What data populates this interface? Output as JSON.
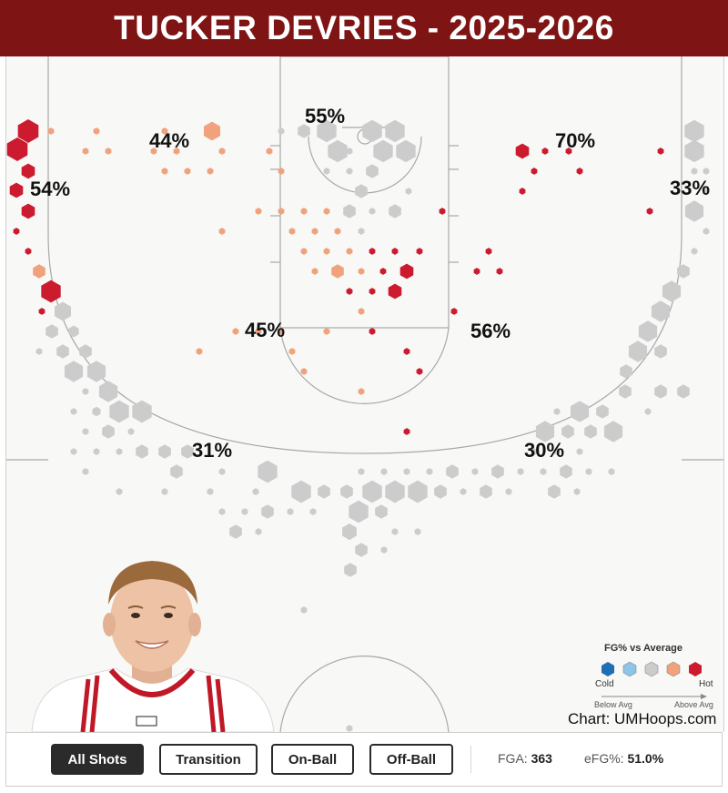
{
  "title": "TUCKER DEVRIES - 2025-2026",
  "colors": {
    "title_bg": "#7f1414",
    "cold": "#1f6fb2",
    "below_avg": "#8ec4e6",
    "average": "#cccccc",
    "above_avg": "#f0a27c",
    "hot": "#cc1a2e"
  },
  "legend": {
    "title": "FG% vs Average",
    "cold_label": "Cold",
    "hot_label": "Hot",
    "below_label": "Below Avg",
    "above_label": "Above Avg"
  },
  "credit": "Chart: UMHoops.com",
  "buttons": [
    "All Shots",
    "Transition",
    "On-Ball",
    "Off-Ball"
  ],
  "active_button": "All Shots",
  "stats": {
    "fga_label": "FGA:",
    "fga_value": "363",
    "efg_label": "eFG%:",
    "efg_value": "51.0%"
  },
  "chart_data": {
    "type": "hexbin shot chart",
    "zones": [
      {
        "zone": "restricted area",
        "fg_pct": "55%"
      },
      {
        "zone": "left baseline paint",
        "fg_pct": "44%"
      },
      {
        "zone": "right baseline",
        "fg_pct": "70%"
      },
      {
        "zone": "left corner three",
        "fg_pct": "54%"
      },
      {
        "zone": "right corner three",
        "fg_pct": "33%"
      },
      {
        "zone": "left mid-range",
        "fg_pct": "45%"
      },
      {
        "zone": "right mid-range",
        "fg_pct": "56%"
      },
      {
        "zone": "left wing three",
        "fg_pct": "31%"
      },
      {
        "zone": "right wing three",
        "fg_pct": "30%"
      }
    ],
    "color_scale": [
      "cold",
      "below_avg",
      "average",
      "above_avg",
      "hot"
    ],
    "shots": [
      [
        "h",
        30,
        144,
        1.0
      ],
      [
        "h",
        18,
        164,
        1.0
      ],
      [
        "h",
        30,
        188,
        0.65
      ],
      [
        "h",
        17,
        209,
        0.65
      ],
      [
        "h",
        30,
        232,
        0.65
      ],
      [
        "h",
        17,
        254,
        0.3
      ],
      [
        "h",
        30,
        276,
        0.3
      ],
      [
        "o",
        42,
        298,
        0.6
      ],
      [
        "h",
        55,
        320,
        0.95
      ],
      [
        "h",
        45,
        342,
        0.3
      ],
      [
        "g",
        68,
        342,
        0.8
      ],
      [
        "g",
        56,
        364,
        0.6
      ],
      [
        "g",
        42,
        386,
        0.3
      ],
      [
        "g",
        80,
        364,
        0.5
      ],
      [
        "g",
        68,
        386,
        0.6
      ],
      [
        "g",
        93,
        386,
        0.6
      ],
      [
        "g",
        80,
        408,
        0.9
      ],
      [
        "g",
        105,
        408,
        0.9
      ],
      [
        "g",
        93,
        430,
        0.3
      ],
      [
        "g",
        118,
        430,
        0.9
      ],
      [
        "g",
        105,
        452,
        0.4
      ],
      [
        "g",
        130,
        452,
        0.95
      ],
      [
        "g",
        155,
        452,
        0.95
      ],
      [
        "g",
        80,
        452,
        0.3
      ],
      [
        "g",
        93,
        474,
        0.3
      ],
      [
        "g",
        118,
        474,
        0.6
      ],
      [
        "g",
        143,
        474,
        0.3
      ],
      [
        "g",
        80,
        496,
        0.3
      ],
      [
        "g",
        105,
        496,
        0.3
      ],
      [
        "g",
        130,
        496,
        0.3
      ],
      [
        "g",
        155,
        496,
        0.6
      ],
      [
        "g",
        180,
        496,
        0.6
      ],
      [
        "g",
        205,
        496,
        0.6
      ],
      [
        "g",
        93,
        518,
        0.3
      ],
      [
        "g",
        193,
        518,
        0.6
      ],
      [
        "g",
        243,
        518,
        0.3
      ],
      [
        "g",
        293,
        518,
        0.95
      ],
      [
        "g",
        130,
        540,
        0.3
      ],
      [
        "g",
        180,
        540,
        0.3
      ],
      [
        "g",
        230,
        540,
        0.3
      ],
      [
        "g",
        280,
        540,
        0.3
      ],
      [
        "g",
        330,
        540,
        0.95
      ],
      [
        "g",
        355,
        540,
        0.6
      ],
      [
        "g",
        380,
        540,
        0.6
      ],
      [
        "g",
        243,
        562,
        0.3
      ],
      [
        "g",
        268,
        562,
        0.3
      ],
      [
        "g",
        293,
        562,
        0.6
      ],
      [
        "g",
        318,
        562,
        0.3
      ],
      [
        "g",
        343,
        562,
        0.3
      ],
      [
        "g",
        393,
        562,
        0.95
      ],
      [
        "g",
        418,
        562,
        0.6
      ],
      [
        "g",
        258,
        584,
        0.6
      ],
      [
        "g",
        283,
        584,
        0.3
      ],
      [
        "g",
        383,
        584,
        0.7
      ],
      [
        "g",
        433,
        584,
        0.3
      ],
      [
        "g",
        458,
        584,
        0.3
      ],
      [
        "g",
        396,
        518,
        0.3
      ],
      [
        "g",
        421,
        518,
        0.3
      ],
      [
        "g",
        446,
        518,
        0.3
      ],
      [
        "g",
        471,
        518,
        0.3
      ],
      [
        "g",
        496,
        518,
        0.6
      ],
      [
        "g",
        521,
        518,
        0.3
      ],
      [
        "g",
        546,
        518,
        0.6
      ],
      [
        "g",
        571,
        518,
        0.3
      ],
      [
        "g",
        596,
        518,
        0.3
      ],
      [
        "g",
        621,
        518,
        0.6
      ],
      [
        "g",
        646,
        518,
        0.3
      ],
      [
        "g",
        671,
        518,
        0.3
      ],
      [
        "g",
        408,
        540,
        0.95
      ],
      [
        "g",
        433,
        540,
        0.95
      ],
      [
        "g",
        458,
        540,
        0.95
      ],
      [
        "g",
        483,
        540,
        0.6
      ],
      [
        "g",
        508,
        540,
        0.3
      ],
      [
        "g",
        533,
        540,
        0.6
      ],
      [
        "g",
        558,
        540,
        0.3
      ],
      [
        "g",
        608,
        540,
        0.6
      ],
      [
        "g",
        633,
        540,
        0.3
      ],
      [
        "g",
        396,
        604,
        0.6
      ],
      [
        "g",
        421,
        604,
        0.3
      ],
      [
        "g",
        384,
        626,
        0.6
      ],
      [
        "g",
        333,
        670,
        0.3
      ],
      [
        "g",
        383,
        800,
        0.3
      ],
      [
        "g",
        598,
        474,
        0.9
      ],
      [
        "g",
        623,
        474,
        0.6
      ],
      [
        "g",
        648,
        474,
        0.6
      ],
      [
        "g",
        673,
        474,
        0.9
      ],
      [
        "g",
        636,
        452,
        0.9
      ],
      [
        "g",
        661,
        452,
        0.6
      ],
      [
        "g",
        611,
        496,
        0.3
      ],
      [
        "g",
        636,
        496,
        0.3
      ],
      [
        "g",
        586,
        496,
        0.3
      ],
      [
        "g",
        611,
        452,
        0.3
      ],
      [
        "g",
        711,
        452,
        0.3
      ],
      [
        "g",
        686,
        430,
        0.6
      ],
      [
        "g",
        725,
        430,
        0.6
      ],
      [
        "g",
        750,
        430,
        0.6
      ],
      [
        "g",
        687,
        408,
        0.6
      ],
      [
        "g",
        700,
        386,
        0.9
      ],
      [
        "g",
        725,
        386,
        0.6
      ],
      [
        "g",
        711,
        364,
        0.9
      ],
      [
        "g",
        725,
        342,
        0.9
      ],
      [
        "g",
        737,
        320,
        0.9
      ],
      [
        "g",
        750,
        298,
        0.6
      ],
      [
        "g",
        762,
        276,
        0.3
      ],
      [
        "g",
        762,
        232,
        0.9
      ],
      [
        "g",
        775,
        254,
        0.3
      ],
      [
        "g",
        762,
        188,
        0.3
      ],
      [
        "g",
        775,
        210,
        0.3
      ],
      [
        "g",
        762,
        166,
        0.95
      ],
      [
        "g",
        762,
        144,
        0.95
      ],
      [
        "g",
        775,
        188,
        0.3
      ],
      [
        "g",
        333,
        144,
        0.6
      ],
      [
        "g",
        358,
        144,
        0.95
      ],
      [
        "g",
        408,
        144,
        0.95
      ],
      [
        "g",
        433,
        144,
        0.95
      ],
      [
        "g",
        383,
        166,
        0.3
      ],
      [
        "g",
        370,
        166,
        0.95
      ],
      [
        "g",
        420,
        166,
        0.95
      ],
      [
        "g",
        445,
        166,
        0.95
      ],
      [
        "g",
        358,
        188,
        0.3
      ],
      [
        "g",
        383,
        188,
        0.3
      ],
      [
        "g",
        408,
        188,
        0.6
      ],
      [
        "g",
        396,
        210,
        0.6
      ],
      [
        "g",
        383,
        232,
        0.6
      ],
      [
        "g",
        408,
        232,
        0.3
      ],
      [
        "g",
        433,
        232,
        0.6
      ],
      [
        "g",
        448,
        210,
        0.3
      ],
      [
        "g",
        396,
        254,
        0.3
      ],
      [
        "g",
        308,
        144,
        0.3
      ],
      [
        "o",
        105,
        144,
        0.3
      ],
      [
        "o",
        55,
        144,
        0.3
      ],
      [
        "o",
        180,
        144,
        0.3
      ],
      [
        "o",
        232,
        144,
        0.8
      ],
      [
        "o",
        93,
        166,
        0.3
      ],
      [
        "o",
        118,
        166,
        0.3
      ],
      [
        "o",
        168,
        166,
        0.3
      ],
      [
        "o",
        193,
        166,
        0.3
      ],
      [
        "o",
        243,
        166,
        0.3
      ],
      [
        "o",
        295,
        166,
        0.3
      ],
      [
        "o",
        180,
        188,
        0.3
      ],
      [
        "o",
        205,
        188,
        0.3
      ],
      [
        "o",
        230,
        188,
        0.3
      ],
      [
        "o",
        308,
        188,
        0.3
      ],
      [
        "o",
        283,
        232,
        0.3
      ],
      [
        "o",
        308,
        232,
        0.3
      ],
      [
        "o",
        333,
        232,
        0.3
      ],
      [
        "o",
        358,
        232,
        0.3
      ],
      [
        "o",
        243,
        254,
        0.3
      ],
      [
        "o",
        320,
        254,
        0.3
      ],
      [
        "o",
        345,
        254,
        0.3
      ],
      [
        "o",
        370,
        254,
        0.3
      ],
      [
        "o",
        333,
        276,
        0.3
      ],
      [
        "o",
        358,
        276,
        0.3
      ],
      [
        "o",
        383,
        276,
        0.3
      ],
      [
        "o",
        345,
        298,
        0.3
      ],
      [
        "o",
        370,
        298,
        0.6
      ],
      [
        "o",
        396,
        298,
        0.3
      ],
      [
        "o",
        258,
        364,
        0.3
      ],
      [
        "o",
        283,
        364,
        0.3
      ],
      [
        "o",
        308,
        364,
        0.3
      ],
      [
        "o",
        358,
        364,
        0.3
      ],
      [
        "o",
        218,
        386,
        0.3
      ],
      [
        "o",
        320,
        386,
        0.3
      ],
      [
        "o",
        333,
        408,
        0.3
      ],
      [
        "o",
        396,
        430,
        0.3
      ],
      [
        "o",
        396,
        342,
        0.3
      ],
      [
        "h",
        408,
        276,
        0.3
      ],
      [
        "h",
        433,
        276,
        0.3
      ],
      [
        "h",
        460,
        276,
        0.3
      ],
      [
        "h",
        420,
        298,
        0.3
      ],
      [
        "h",
        446,
        298,
        0.65
      ],
      [
        "h",
        408,
        320,
        0.3
      ],
      [
        "h",
        433,
        320,
        0.65
      ],
      [
        "h",
        383,
        320,
        0.3
      ],
      [
        "h",
        485,
        232,
        0.3
      ],
      [
        "h",
        536,
        276,
        0.3
      ],
      [
        "h",
        523,
        298,
        0.3
      ],
      [
        "h",
        548,
        298,
        0.3
      ],
      [
        "h",
        498,
        342,
        0.3
      ],
      [
        "h",
        408,
        364,
        0.3
      ],
      [
        "h",
        446,
        386,
        0.3
      ],
      [
        "h",
        460,
        408,
        0.3
      ],
      [
        "h",
        446,
        474,
        0.3
      ],
      [
        "h",
        573,
        166,
        0.65
      ],
      [
        "h",
        598,
        166,
        0.3
      ],
      [
        "h",
        624,
        166,
        0.3
      ],
      [
        "h",
        586,
        188,
        0.3
      ],
      [
        "h",
        636,
        188,
        0.3
      ],
      [
        "h",
        573,
        210,
        0.3
      ],
      [
        "h",
        725,
        166,
        0.3
      ],
      [
        "h",
        713,
        232,
        0.3
      ]
    ]
  }
}
